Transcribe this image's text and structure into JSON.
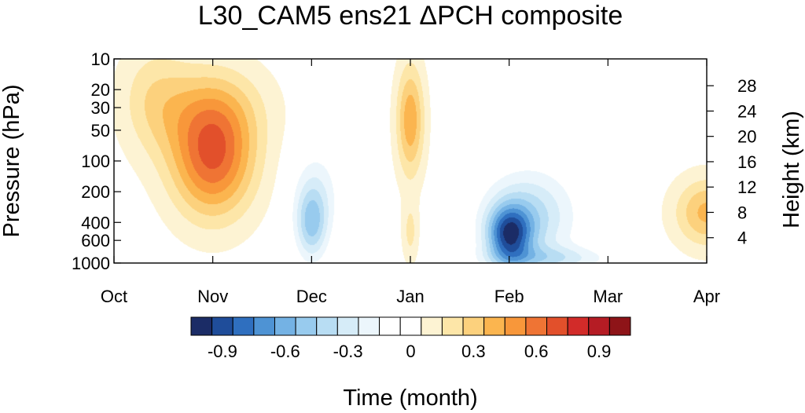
{
  "chart_data": {
    "type": "heatmap",
    "title": "L30_CAM5 ens21 ΔPCH composite",
    "xlabel": "Time (month)",
    "ylabel": "Pressure (hPa)",
    "ylabel_right": "Height (km)",
    "x_ticks": [
      "Oct",
      "Nov",
      "Dec",
      "Jan",
      "Feb",
      "Mar",
      "Apr"
    ],
    "y_ticks": [
      10,
      20,
      30,
      50,
      100,
      200,
      400,
      600,
      1000
    ],
    "y_scale": "log",
    "y_range": [
      1000,
      10
    ],
    "right_ticks": [
      4,
      8,
      12,
      16,
      20,
      24,
      28
    ],
    "colorbar": {
      "labels": [
        "-0.9",
        "-0.6",
        "-0.3",
        "0",
        "0.3",
        "0.6",
        "0.9"
      ],
      "label_values": [
        -0.9,
        -0.6,
        -0.3,
        0,
        0.3,
        0.6,
        0.9
      ],
      "min": -1.05,
      "max": 1.05,
      "step": 0.1,
      "colors": [
        "#1b2c66",
        "#1f4d9a",
        "#2f6fbf",
        "#4e93d4",
        "#74b2e4",
        "#98cbee",
        "#b8ddf3",
        "#d6ecf8",
        "#ecf6fc",
        "#ffffff",
        "#ffffff",
        "#fdf3d3",
        "#fde6a8",
        "#fcd17d",
        "#fbb54f",
        "#f8973a",
        "#ef7434",
        "#e2502b",
        "#d22b29",
        "#b51c24",
        "#8e1418"
      ]
    },
    "features": [
      {
        "x": 1.0,
        "p": 95,
        "value": 0.63,
        "sx": 0.42,
        "sy": 0.58
      },
      {
        "x": 1.0,
        "p": 30,
        "value": 0.22,
        "sx": 0.55,
        "sy": 0.45
      },
      {
        "x": 0.4,
        "p": 25,
        "value": 0.2,
        "sx": 0.35,
        "sy": 0.55
      },
      {
        "x": 2.0,
        "p": 420,
        "value": -0.42,
        "sx": 0.16,
        "sy": 0.35
      },
      {
        "x": 2.05,
        "p": 200,
        "value": -0.2,
        "sx": 0.25,
        "sy": 0.45
      },
      {
        "x": 3.0,
        "p": 40,
        "value": 0.43,
        "sx": 0.14,
        "sy": 0.55
      },
      {
        "x": 3.0,
        "p": 500,
        "value": 0.18,
        "sx": 0.08,
        "sy": 0.3
      },
      {
        "x": 4.0,
        "p": 530,
        "value": -0.75,
        "sx": 0.22,
        "sy": 0.28
      },
      {
        "x": 4.2,
        "p": 350,
        "value": -0.4,
        "sx": 0.45,
        "sy": 0.45
      },
      {
        "x": 4.4,
        "p": 900,
        "value": -0.28,
        "sx": 0.6,
        "sy": 0.12
      },
      {
        "x": 5.5,
        "p": 18,
        "value": -0.12,
        "sx": 0.9,
        "sy": 0.22
      },
      {
        "x": 6.0,
        "p": 320,
        "value": 0.38,
        "sx": 0.32,
        "sy": 0.33
      }
    ]
  }
}
